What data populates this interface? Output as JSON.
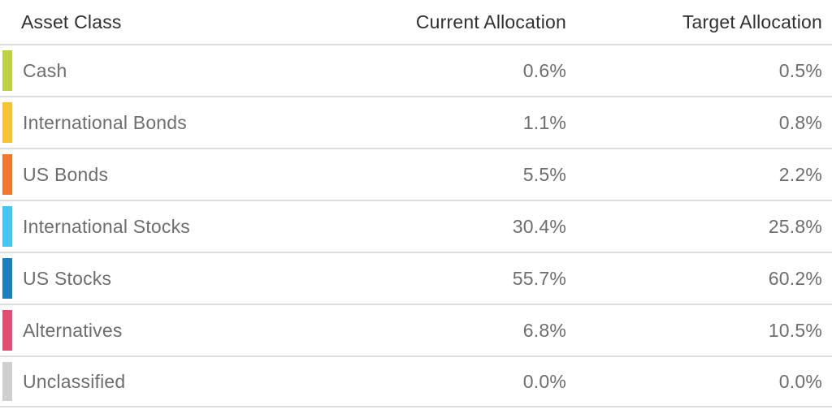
{
  "table": {
    "columns": {
      "asset_class": "Asset Class",
      "current": "Current Allocation",
      "target": "Target Allocation"
    },
    "rows": [
      {
        "asset_class": "Cash",
        "color": "#bcd23e",
        "current": "0.6%",
        "target": "0.5%"
      },
      {
        "asset_class": "International Bonds",
        "color": "#f8c333",
        "current": "1.1%",
        "target": "0.8%"
      },
      {
        "asset_class": "US Bonds",
        "color": "#f2762b",
        "current": "5.5%",
        "target": "2.2%"
      },
      {
        "asset_class": "International Stocks",
        "color": "#41c7f2",
        "current": "30.4%",
        "target": "25.8%"
      },
      {
        "asset_class": "US Stocks",
        "color": "#1c7fc2",
        "current": "55.7%",
        "target": "60.2%"
      },
      {
        "asset_class": "Alternatives",
        "color": "#e54a70",
        "current": "6.8%",
        "target": "10.5%"
      },
      {
        "asset_class": "Unclassified",
        "color": "#cfcfcf",
        "current": "0.0%",
        "target": "0.0%"
      }
    ]
  },
  "colors": {
    "header_text": "#303030",
    "row_text": "#6e6e6e",
    "divider": "#dcdcdc",
    "background": "#ffffff"
  },
  "chart_data": {
    "type": "table",
    "categories": [
      "Cash",
      "International Bonds",
      "US Bonds",
      "International Stocks",
      "US Stocks",
      "Alternatives",
      "Unclassified"
    ],
    "series": [
      {
        "name": "Current Allocation",
        "values": [
          0.6,
          1.1,
          5.5,
          30.4,
          55.7,
          6.8,
          0.0
        ]
      },
      {
        "name": "Target Allocation",
        "values": [
          0.5,
          0.8,
          2.2,
          25.8,
          60.2,
          10.5,
          0.0
        ]
      }
    ],
    "title": "",
    "unit": "%"
  }
}
